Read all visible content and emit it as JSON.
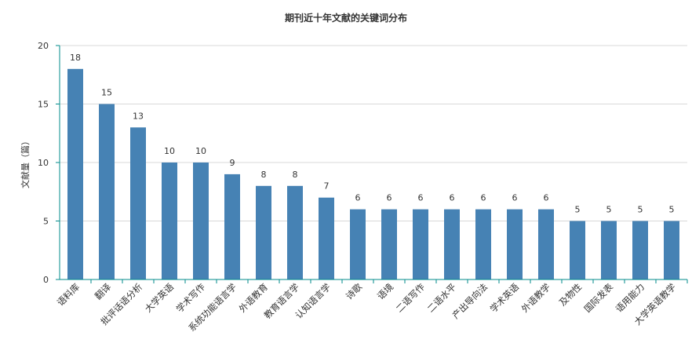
{
  "chart_data": {
    "type": "bar",
    "title": "期刊近十年文献的关键词分布",
    "xlabel": "",
    "ylabel": "文献量（篇）",
    "ylim": [
      0,
      20
    ],
    "yticks": [
      0,
      5,
      10,
      15,
      20
    ],
    "grid": true,
    "legend": "none",
    "bar_color": "#4682b4",
    "axis_color": "#008b8b",
    "categories": [
      "语料库",
      "翻译",
      "批评话语分析",
      "大学英语",
      "学术写作",
      "系统功能语言学",
      "外语教育",
      "教育语言学",
      "认知语言学",
      "诗歌",
      "语境",
      "二语写作",
      "二语水平",
      "产出导向法",
      "学术英语",
      "外语教学",
      "及物性",
      "国际发表",
      "语用能力",
      "大学英语教学"
    ],
    "values": [
      18,
      15,
      13,
      10,
      10,
      9,
      8,
      8,
      7,
      6,
      6,
      6,
      6,
      6,
      6,
      6,
      5,
      5,
      5,
      5
    ]
  }
}
